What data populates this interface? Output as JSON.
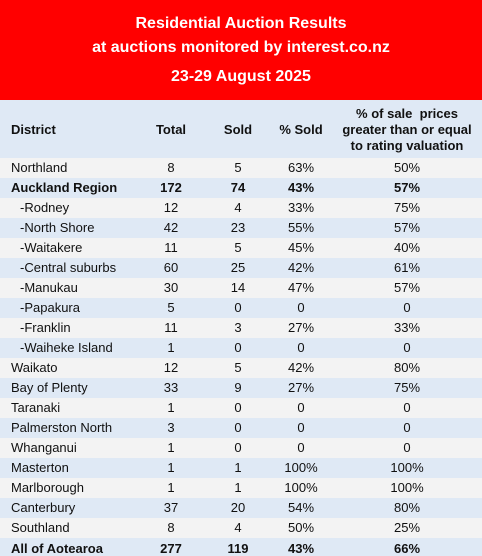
{
  "header": {
    "title": "Residential Auction Results",
    "subtitle": "at auctions monitored by interest.co.nz",
    "date_range": "23-29 August 2025"
  },
  "columns": {
    "district": "District",
    "total": "Total",
    "sold": "Sold",
    "pct_sold": "% Sold",
    "pct_val_line1": "% of sale  prices",
    "pct_val_line2": "greater than or equal",
    "pct_val_line3": "to rating valuation"
  },
  "rows": [
    {
      "district": "Northland",
      "total": "8",
      "sold": "5",
      "pct_sold": "63%",
      "pct_val": "50%"
    },
    {
      "district": "Auckland Region",
      "total": "172",
      "sold": "74",
      "pct_sold": "43%",
      "pct_val": "57%"
    },
    {
      "district": "-Rodney",
      "total": "12",
      "sold": "4",
      "pct_sold": "33%",
      "pct_val": "75%"
    },
    {
      "district": "-North Shore",
      "total": "42",
      "sold": "23",
      "pct_sold": "55%",
      "pct_val": "57%"
    },
    {
      "district": "-Waitakere",
      "total": "11",
      "sold": "5",
      "pct_sold": "45%",
      "pct_val": "40%"
    },
    {
      "district": "-Central suburbs",
      "total": "60",
      "sold": "25",
      "pct_sold": "42%",
      "pct_val": "61%"
    },
    {
      "district": "-Manukau",
      "total": "30",
      "sold": "14",
      "pct_sold": "47%",
      "pct_val": "57%"
    },
    {
      "district": "-Papakura",
      "total": "5",
      "sold": "0",
      "pct_sold": "0",
      "pct_val": "0"
    },
    {
      "district": "-Franklin",
      "total": "11",
      "sold": "3",
      "pct_sold": "27%",
      "pct_val": "33%"
    },
    {
      "district": "-Waiheke Island",
      "total": "1",
      "sold": "0",
      "pct_sold": "0",
      "pct_val": "0"
    },
    {
      "district": "Waikato",
      "total": "12",
      "sold": "5",
      "pct_sold": "42%",
      "pct_val": "80%"
    },
    {
      "district": "Bay of Plenty",
      "total": "33",
      "sold": "9",
      "pct_sold": "27%",
      "pct_val": "75%"
    },
    {
      "district": "Taranaki",
      "total": "1",
      "sold": "0",
      "pct_sold": "0",
      "pct_val": "0"
    },
    {
      "district": "Palmerston North",
      "total": "3",
      "sold": "0",
      "pct_sold": "0",
      "pct_val": "0"
    },
    {
      "district": "Whanganui",
      "total": "1",
      "sold": "0",
      "pct_sold": "0",
      "pct_val": "0"
    },
    {
      "district": "Masterton",
      "total": "1",
      "sold": "1",
      "pct_sold": "100%",
      "pct_val": "100%"
    },
    {
      "district": "Marlborough",
      "total": "1",
      "sold": "1",
      "pct_sold": "100%",
      "pct_val": "100%"
    },
    {
      "district": "Canterbury",
      "total": "37",
      "sold": "20",
      "pct_sold": "54%",
      "pct_val": "80%"
    },
    {
      "district": "Southland",
      "total": "8",
      "sold": "4",
      "pct_sold": "50%",
      "pct_val": "25%"
    },
    {
      "district": "All of Aotearoa",
      "total": "277",
      "sold": "119",
      "pct_sold": "43%",
      "pct_val": "66%"
    }
  ],
  "colors": {
    "header_bg": "#ff0000",
    "band_blue": "#dfe9f5",
    "band_grey": "#f3f3f3"
  }
}
